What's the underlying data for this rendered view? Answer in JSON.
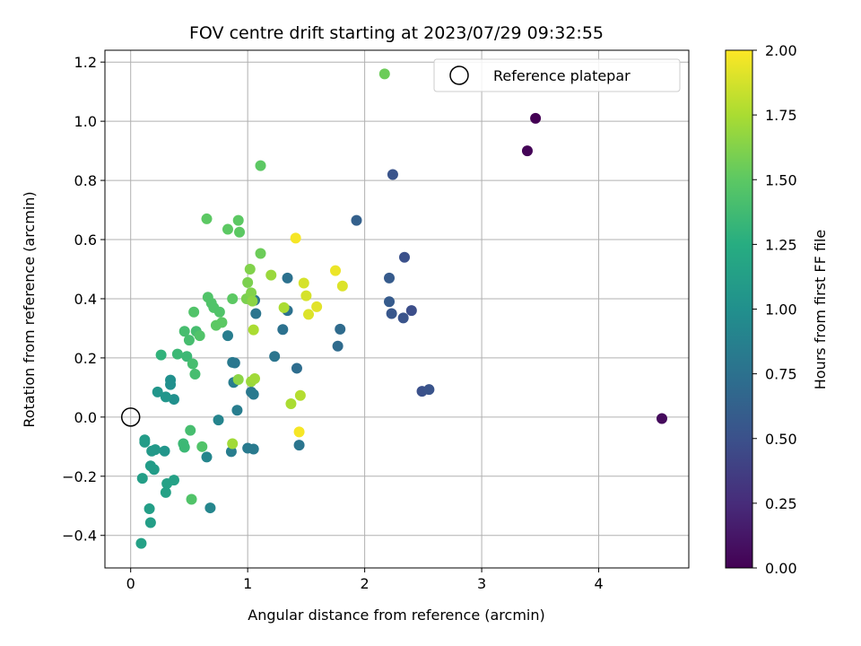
{
  "chart_data": {
    "type": "scatter",
    "title": "FOV centre drift starting at 2023/07/29 09:32:55",
    "xlabel": "Angular distance from reference (arcmin)",
    "ylabel": "Rotation from reference (arcmin)",
    "xlim": [
      -0.22,
      4.77
    ],
    "ylim": [
      -0.51,
      1.24
    ],
    "xticks": [
      0,
      1,
      2,
      3,
      4
    ],
    "xtick_labels": [
      "0",
      "1",
      "2",
      "3",
      "4"
    ],
    "yticks": [
      -0.4,
      -0.2,
      0.0,
      0.2,
      0.4,
      0.6,
      0.8,
      1.0,
      1.2
    ],
    "ytick_labels": [
      "−0.4",
      "−0.2",
      "0.0",
      "0.2",
      "0.4",
      "0.6",
      "0.8",
      "1.0",
      "1.2"
    ],
    "grid": true,
    "legend": {
      "position": "top-right",
      "entries": [
        "Reference platepar"
      ]
    },
    "colorbar": {
      "label": "Hours from first FF file",
      "range": [
        0,
        2
      ],
      "colormap": "viridis",
      "ticks": [
        0.0,
        0.25,
        0.5,
        0.75,
        1.0,
        1.25,
        1.5,
        1.75,
        2.0
      ],
      "tick_labels": [
        "0.00",
        "0.25",
        "0.50",
        "0.75",
        "1.00",
        "1.25",
        "1.50",
        "1.75",
        "2.00"
      ]
    },
    "reference": {
      "x": 0,
      "y": 0,
      "marker": "hollow-circle"
    },
    "points": [
      {
        "x": 3.46,
        "y": 1.01,
        "h": 0.0
      },
      {
        "x": 3.39,
        "y": 0.9,
        "h": 0.02
      },
      {
        "x": 4.54,
        "y": -0.005,
        "h": 0.05
      },
      {
        "x": 2.24,
        "y": 0.82,
        "h": 0.52
      },
      {
        "x": 1.93,
        "y": 0.665,
        "h": 0.62
      },
      {
        "x": 2.34,
        "y": 0.54,
        "h": 0.5
      },
      {
        "x": 2.21,
        "y": 0.47,
        "h": 0.58
      },
      {
        "x": 2.21,
        "y": 0.39,
        "h": 0.58
      },
      {
        "x": 2.23,
        "y": 0.35,
        "h": 0.55
      },
      {
        "x": 2.33,
        "y": 0.335,
        "h": 0.52
      },
      {
        "x": 2.4,
        "y": 0.36,
        "h": 0.48
      },
      {
        "x": 2.49,
        "y": 0.087,
        "h": 0.5
      },
      {
        "x": 2.55,
        "y": 0.093,
        "h": 0.52
      },
      {
        "x": 1.79,
        "y": 0.297,
        "h": 0.7
      },
      {
        "x": 1.77,
        "y": 0.24,
        "h": 0.7
      },
      {
        "x": 1.42,
        "y": 0.165,
        "h": 0.72
      },
      {
        "x": 1.34,
        "y": 0.47,
        "h": 0.75
      },
      {
        "x": 1.34,
        "y": 0.36,
        "h": 0.75
      },
      {
        "x": 1.3,
        "y": 0.296,
        "h": 0.75
      },
      {
        "x": 1.23,
        "y": 0.205,
        "h": 0.78
      },
      {
        "x": 1.44,
        "y": -0.095,
        "h": 0.78
      },
      {
        "x": 1.07,
        "y": 0.35,
        "h": 0.78
      },
      {
        "x": 1.06,
        "y": 0.395,
        "h": 0.78
      },
      {
        "x": 1.03,
        "y": 0.085,
        "h": 0.8
      },
      {
        "x": 1.05,
        "y": 0.077,
        "h": 0.82
      },
      {
        "x": 1.0,
        "y": -0.105,
        "h": 0.82
      },
      {
        "x": 1.05,
        "y": -0.108,
        "h": 0.82
      },
      {
        "x": 0.87,
        "y": 0.185,
        "h": 0.82
      },
      {
        "x": 0.89,
        "y": 0.183,
        "h": 0.8
      },
      {
        "x": 0.88,
        "y": 0.117,
        "h": 0.85
      },
      {
        "x": 0.91,
        "y": 0.023,
        "h": 0.85
      },
      {
        "x": 0.86,
        "y": -0.117,
        "h": 0.85
      },
      {
        "x": 0.83,
        "y": 0.275,
        "h": 0.85
      },
      {
        "x": 0.75,
        "y": -0.01,
        "h": 0.9
      },
      {
        "x": 0.65,
        "y": -0.135,
        "h": 0.92
      },
      {
        "x": 0.68,
        "y": -0.307,
        "h": 0.92
      },
      {
        "x": 0.34,
        "y": 0.125,
        "h": 1.0
      },
      {
        "x": 0.34,
        "y": 0.11,
        "h": 1.0
      },
      {
        "x": 0.37,
        "y": 0.06,
        "h": 1.0
      },
      {
        "x": 0.3,
        "y": 0.068,
        "h": 1.05
      },
      {
        "x": 0.23,
        "y": 0.085,
        "h": 1.05
      },
      {
        "x": 0.29,
        "y": -0.115,
        "h": 1.05
      },
      {
        "x": 0.21,
        "y": -0.11,
        "h": 1.08
      },
      {
        "x": 0.18,
        "y": -0.115,
        "h": 1.08
      },
      {
        "x": 0.2,
        "y": -0.177,
        "h": 1.1
      },
      {
        "x": 0.17,
        "y": -0.165,
        "h": 1.1
      },
      {
        "x": 0.12,
        "y": -0.085,
        "h": 1.1
      },
      {
        "x": 0.12,
        "y": -0.077,
        "h": 1.1
      },
      {
        "x": 0.1,
        "y": -0.207,
        "h": 1.12
      },
      {
        "x": 0.16,
        "y": -0.31,
        "h": 1.12
      },
      {
        "x": 0.17,
        "y": -0.357,
        "h": 1.12
      },
      {
        "x": 0.09,
        "y": -0.427,
        "h": 1.15
      },
      {
        "x": 0.31,
        "y": -0.225,
        "h": 1.15
      },
      {
        "x": 0.37,
        "y": -0.213,
        "h": 1.15
      },
      {
        "x": 0.3,
        "y": -0.255,
        "h": 1.15
      },
      {
        "x": 0.26,
        "y": 0.21,
        "h": 1.3
      },
      {
        "x": 0.4,
        "y": 0.213,
        "h": 1.35
      },
      {
        "x": 0.48,
        "y": 0.205,
        "h": 1.35
      },
      {
        "x": 0.53,
        "y": 0.18,
        "h": 1.4
      },
      {
        "x": 0.55,
        "y": 0.145,
        "h": 1.4
      },
      {
        "x": 0.45,
        "y": -0.09,
        "h": 1.35
      },
      {
        "x": 0.46,
        "y": -0.102,
        "h": 1.35
      },
      {
        "x": 0.51,
        "y": -0.045,
        "h": 1.4
      },
      {
        "x": 0.61,
        "y": -0.1,
        "h": 1.45
      },
      {
        "x": 0.52,
        "y": -0.278,
        "h": 1.45
      },
      {
        "x": 0.46,
        "y": 0.29,
        "h": 1.4
      },
      {
        "x": 0.5,
        "y": 0.26,
        "h": 1.4
      },
      {
        "x": 0.56,
        "y": 0.29,
        "h": 1.4
      },
      {
        "x": 0.59,
        "y": 0.275,
        "h": 1.45
      },
      {
        "x": 0.54,
        "y": 0.355,
        "h": 1.45
      },
      {
        "x": 0.66,
        "y": 0.405,
        "h": 1.45
      },
      {
        "x": 0.69,
        "y": 0.385,
        "h": 1.45
      },
      {
        "x": 0.71,
        "y": 0.37,
        "h": 1.45
      },
      {
        "x": 0.76,
        "y": 0.355,
        "h": 1.45
      },
      {
        "x": 0.73,
        "y": 0.31,
        "h": 1.5
      },
      {
        "x": 0.78,
        "y": 0.32,
        "h": 1.5
      },
      {
        "x": 0.87,
        "y": 0.4,
        "h": 1.5
      },
      {
        "x": 0.65,
        "y": 0.67,
        "h": 1.5
      },
      {
        "x": 0.83,
        "y": 0.635,
        "h": 1.5
      },
      {
        "x": 0.92,
        "y": 0.665,
        "h": 1.5
      },
      {
        "x": 0.93,
        "y": 0.625,
        "h": 1.5
      },
      {
        "x": 1.11,
        "y": 0.85,
        "h": 1.5
      },
      {
        "x": 1.11,
        "y": 0.553,
        "h": 1.55
      },
      {
        "x": 2.17,
        "y": 1.16,
        "h": 1.55
      },
      {
        "x": 1.0,
        "y": 0.455,
        "h": 1.6
      },
      {
        "x": 0.99,
        "y": 0.4,
        "h": 1.6
      },
      {
        "x": 1.02,
        "y": 0.5,
        "h": 1.62
      },
      {
        "x": 1.03,
        "y": 0.42,
        "h": 1.62
      },
      {
        "x": 1.04,
        "y": 0.392,
        "h": 1.65
      },
      {
        "x": 0.92,
        "y": 0.127,
        "h": 1.65
      },
      {
        "x": 1.03,
        "y": 0.12,
        "h": 1.7
      },
      {
        "x": 1.06,
        "y": 0.13,
        "h": 1.72
      },
      {
        "x": 1.05,
        "y": 0.295,
        "h": 1.75
      },
      {
        "x": 0.87,
        "y": -0.09,
        "h": 1.72
      },
      {
        "x": 1.2,
        "y": 0.48,
        "h": 1.7
      },
      {
        "x": 1.31,
        "y": 0.37,
        "h": 1.75
      },
      {
        "x": 1.37,
        "y": 0.045,
        "h": 1.75
      },
      {
        "x": 1.45,
        "y": 0.073,
        "h": 1.78
      },
      {
        "x": 1.44,
        "y": -0.05,
        "h": 1.98
      },
      {
        "x": 1.41,
        "y": 0.605,
        "h": 1.98
      },
      {
        "x": 1.48,
        "y": 0.453,
        "h": 1.88
      },
      {
        "x": 1.5,
        "y": 0.41,
        "h": 1.88
      },
      {
        "x": 1.52,
        "y": 0.347,
        "h": 1.9
      },
      {
        "x": 1.59,
        "y": 0.373,
        "h": 1.92
      },
      {
        "x": 1.75,
        "y": 0.495,
        "h": 1.95
      },
      {
        "x": 1.81,
        "y": 0.443,
        "h": 1.9
      }
    ]
  }
}
